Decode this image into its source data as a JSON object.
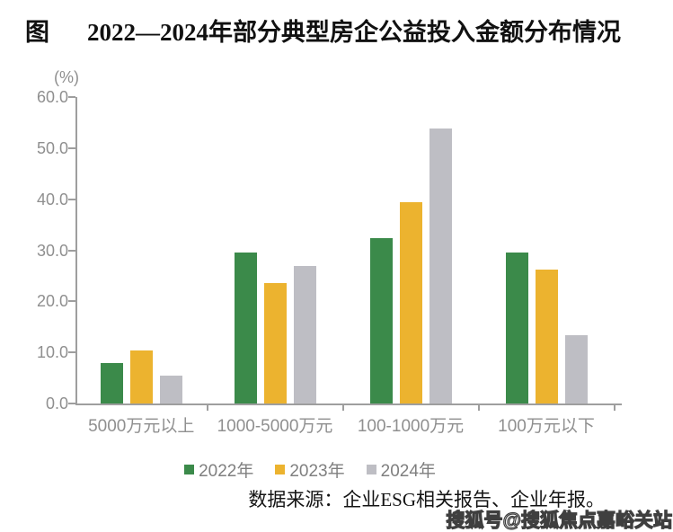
{
  "title": {
    "label": "图",
    "text": "2022—2024年部分典型房企公益投入金额分布情况"
  },
  "chart_data": {
    "type": "bar",
    "title": "2022—2024年部分典型房企公益投入金额分布情况",
    "unit_label": "(%)",
    "categories": [
      "5000万元以上",
      "1000-5000万元",
      "100-1000万元",
      "100万元以下"
    ],
    "series": [
      {
        "name": "2022年",
        "color": "#3B8A4A",
        "values": [
          8.0,
          29.5,
          32.4,
          29.5
        ]
      },
      {
        "name": "2023年",
        "color": "#ECB32F",
        "values": [
          10.3,
          23.6,
          39.4,
          26.2
        ]
      },
      {
        "name": "2024年",
        "color": "#BEBEC4",
        "values": [
          5.4,
          26.9,
          53.9,
          13.4
        ]
      }
    ],
    "ylim": [
      0,
      60
    ],
    "yticks": [
      0,
      10,
      20,
      30,
      40,
      50,
      60
    ],
    "ytick_labels": [
      "0.0",
      "10.0",
      "20.0",
      "30.0",
      "40.0",
      "50.0",
      "60.0"
    ],
    "grid": false,
    "legend_position": "bottom"
  },
  "source_note": "数据来源：企业ESG相关报告、企业年报。",
  "watermark": "搜狐号@搜狐焦点嘉峪关站",
  "colors": {
    "axis": "#9e9e9e",
    "tick_label": "#8f8f8f",
    "category_label": "#8f8f8f",
    "legend_label": "#7f7f7f",
    "series_green": "#3B8A4A",
    "series_yellow": "#ECB32F",
    "series_gray": "#BEBEC4"
  }
}
